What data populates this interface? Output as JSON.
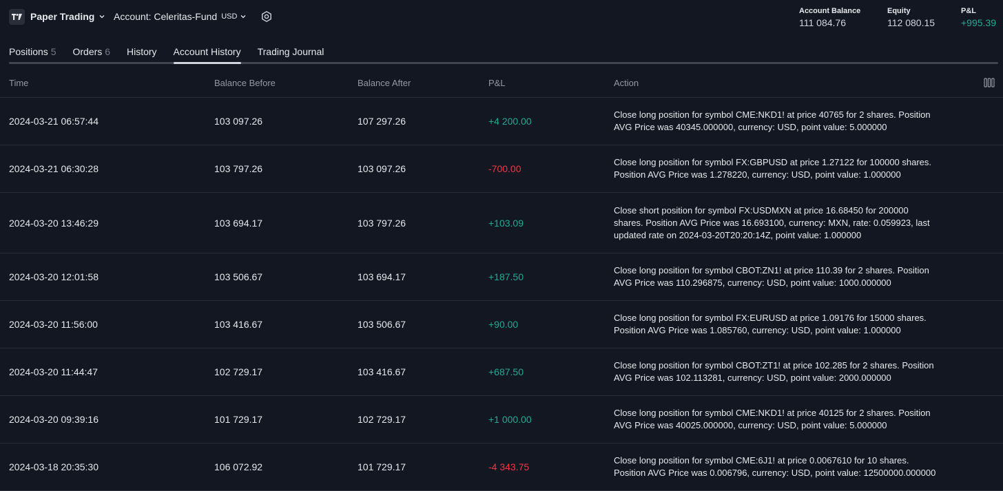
{
  "header": {
    "app_title": "Paper Trading",
    "account_label": "Account: Celeritas-Fund",
    "account_currency": "USD"
  },
  "summary": {
    "balance_label": "Account Balance",
    "balance_value": "111 084.76",
    "equity_label": "Equity",
    "equity_value": "112 080.15",
    "pl_label": "P&L",
    "pl_value": "+995.39"
  },
  "tabs": [
    {
      "label": "Positions",
      "count": "5"
    },
    {
      "label": "Orders",
      "count": "6"
    },
    {
      "label": "History",
      "count": ""
    },
    {
      "label": "Account History",
      "count": ""
    },
    {
      "label": "Trading Journal",
      "count": ""
    }
  ],
  "table": {
    "headers": {
      "time": "Time",
      "balance_before": "Balance Before",
      "balance_after": "Balance After",
      "pl": "P&L",
      "action": "Action"
    },
    "rows": [
      {
        "time": "2024-03-21 06:57:44",
        "before": "103 097.26",
        "after": "107 297.26",
        "pl": "+4 200.00",
        "action": "Close long position for symbol CME:NKD1! at price 40765 for 2 shares. Position AVG Price was 40345.000000, currency: USD, point value: 5.000000"
      },
      {
        "time": "2024-03-21 06:30:28",
        "before": "103 797.26",
        "after": "103 097.26",
        "pl": "-700.00",
        "action": "Close long position for symbol FX:GBPUSD at price 1.27122 for 100000 shares. Position AVG Price was 1.278220, currency: USD, point value: 1.000000"
      },
      {
        "time": "2024-03-20 13:46:29",
        "before": "103 694.17",
        "after": "103 797.26",
        "pl": "+103.09",
        "action": "Close short position for symbol FX:USDMXN at price 16.68450 for 200000 shares. Position AVG Price was 16.693100, currency: MXN, rate: 0.059923, last updated rate on 2024-03-20T20:20:14Z, point value: 1.000000"
      },
      {
        "time": "2024-03-20 12:01:58",
        "before": "103 506.67",
        "after": "103 694.17",
        "pl": "+187.50",
        "action": "Close long position for symbol CBOT:ZN1! at price 110.39 for 2 shares. Position AVG Price was 110.296875, currency: USD, point value: 1000.000000"
      },
      {
        "time": "2024-03-20 11:56:00",
        "before": "103 416.67",
        "after": "103 506.67",
        "pl": "+90.00",
        "action": "Close long position for symbol FX:EURUSD at price 1.09176 for 15000 shares. Position AVG Price was 1.085760, currency: USD, point value: 1.000000"
      },
      {
        "time": "2024-03-20 11:44:47",
        "before": "102 729.17",
        "after": "103 416.67",
        "pl": "+687.50",
        "action": "Close long position for symbol CBOT:ZT1! at price 102.285 for 2 shares. Position AVG Price was 102.113281, currency: USD, point value: 2000.000000"
      },
      {
        "time": "2024-03-20 09:39:16",
        "before": "101 729.17",
        "after": "102 729.17",
        "pl": "+1 000.00",
        "action": "Close long position for symbol CME:NKD1! at price 40125 for 2 shares. Position AVG Price was 40025.000000, currency: USD, point value: 5.000000"
      },
      {
        "time": "2024-03-18 20:35:30",
        "before": "106 072.92",
        "after": "101 729.17",
        "pl": "-4 343.75",
        "action": "Close long position for symbol CME:6J1! at price 0.0067610 for 10 shares. Position AVG Price was 0.006796, currency: USD, point value: 12500000.000000"
      }
    ]
  },
  "colors": {
    "background": "#131722",
    "positive": "#22ab94",
    "negative": "#f23645"
  }
}
